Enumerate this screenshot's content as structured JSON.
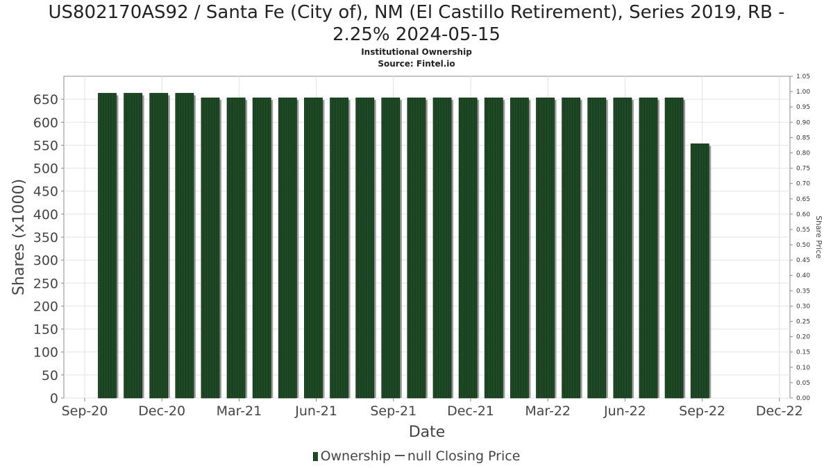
{
  "title_line1": "US802170AS92 / Santa Fe (City of), NM (El Castillo Retirement), Series 2019, RB -",
  "title_line2": "2.25% 2024-05-15",
  "subtitle": "Institutional Ownership",
  "source": "Source: Fintel.io",
  "legend": {
    "ownership_label": "Ownership",
    "price_label": "null Closing Price"
  },
  "chart_data": {
    "type": "bar",
    "xlabel": "Date",
    "ylabel": "Shares (x1000)",
    "y2label": "Share Price",
    "ylim": [
      0,
      700
    ],
    "y2lim": [
      0,
      1.05
    ],
    "yticks": [
      0,
      50,
      100,
      150,
      200,
      250,
      300,
      350,
      400,
      450,
      500,
      550,
      600,
      650
    ],
    "y2ticks": [
      "0.00",
      "0.05",
      "0.10",
      "0.15",
      "0.20",
      "0.25",
      "0.30",
      "0.35",
      "0.40",
      "0.45",
      "0.50",
      "0.55",
      "0.60",
      "0.65",
      "0.70",
      "0.75",
      "0.80",
      "0.85",
      "0.90",
      "0.95",
      "1.00",
      "1.05"
    ],
    "xticks": [
      "Sep-20",
      "Dec-20",
      "Mar-21",
      "Jun-21",
      "Sep-21",
      "Dec-21",
      "Mar-22",
      "Jun-22",
      "Sep-22",
      "Dec-22"
    ],
    "grid": true,
    "legend_position": "bottom",
    "colors": {
      "bar": "#1f4a26",
      "bar_dark": "#0d2a12",
      "shadow": "#8a8a8a"
    },
    "series": [
      {
        "name": "Ownership",
        "values": [
          663,
          663,
          663,
          663,
          653,
          653,
          653,
          653,
          653,
          653,
          653,
          653,
          653,
          653,
          653,
          653,
          653,
          653,
          653,
          653,
          653,
          653,
          653,
          553
        ]
      }
    ]
  }
}
